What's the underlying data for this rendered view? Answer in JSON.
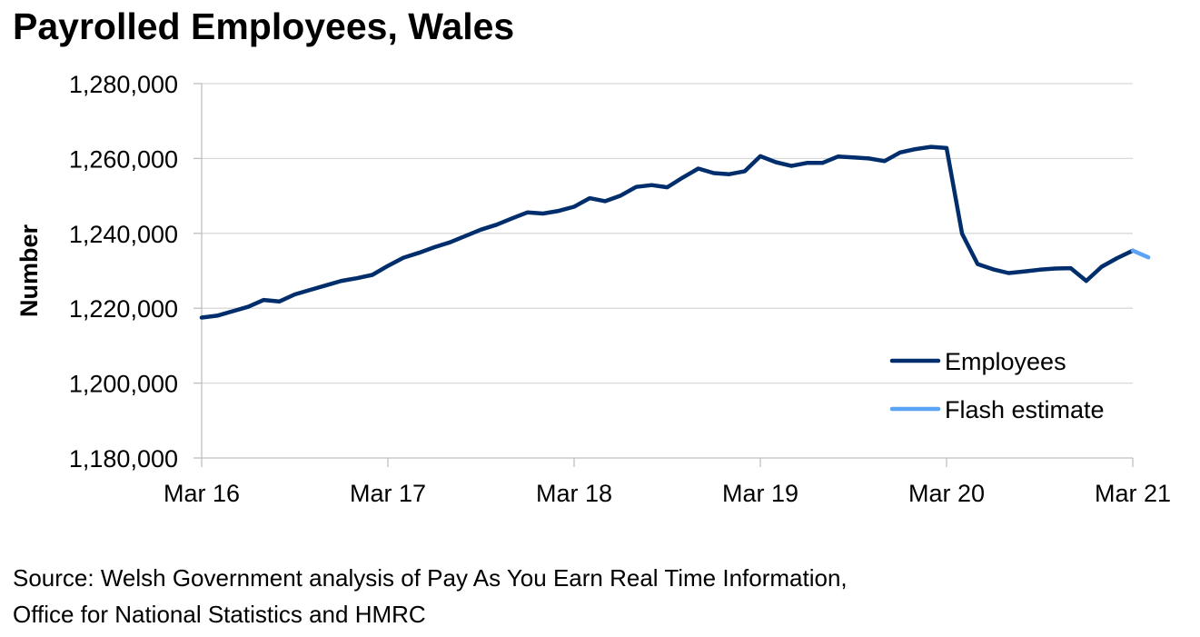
{
  "chart_data": {
    "type": "line",
    "title": "Payrolled Employees, Wales",
    "ylabel": "Number",
    "xlabel": "",
    "ylim": [
      1180000,
      1280000
    ],
    "y_ticks": [
      {
        "value": 1180000,
        "label": "1,180,000"
      },
      {
        "value": 1200000,
        "label": "1,200,000"
      },
      {
        "value": 1220000,
        "label": "1,220,000"
      },
      {
        "value": 1240000,
        "label": "1,240,000"
      },
      {
        "value": 1260000,
        "label": "1,260,000"
      },
      {
        "value": 1280000,
        "label": "1,280,000"
      }
    ],
    "x_ticks": [
      {
        "label": "Mar 16",
        "month": "2016-03"
      },
      {
        "label": "Mar 17",
        "month": "2017-03"
      },
      {
        "label": "Mar 18",
        "month": "2018-03"
      },
      {
        "label": "Mar 19",
        "month": "2019-03"
      },
      {
        "label": "Mar 20",
        "month": "2020-03"
      },
      {
        "label": "Mar 21",
        "month": "2021-03"
      }
    ],
    "grid": true,
    "legend_position": "bottom-right",
    "series": [
      {
        "name": "Employees",
        "color": "#002d6b",
        "points": [
          [
            "2016-03",
            1217500
          ],
          [
            "2016-04",
            1218000
          ],
          [
            "2016-05",
            1219200
          ],
          [
            "2016-06",
            1220400
          ],
          [
            "2016-07",
            1222200
          ],
          [
            "2016-08",
            1221800
          ],
          [
            "2016-09",
            1223700
          ],
          [
            "2016-10",
            1224900
          ],
          [
            "2016-11",
            1226100
          ],
          [
            "2016-12",
            1227300
          ],
          [
            "2017-01",
            1228000
          ],
          [
            "2017-02",
            1228900
          ],
          [
            "2017-03",
            1231300
          ],
          [
            "2017-04",
            1233500
          ],
          [
            "2017-05",
            1234800
          ],
          [
            "2017-06",
            1236300
          ],
          [
            "2017-07",
            1237600
          ],
          [
            "2017-08",
            1239300
          ],
          [
            "2017-09",
            1241000
          ],
          [
            "2017-10",
            1242300
          ],
          [
            "2017-11",
            1244000
          ],
          [
            "2017-12",
            1245600
          ],
          [
            "2018-01",
            1245300
          ],
          [
            "2018-02",
            1246000
          ],
          [
            "2018-03",
            1247100
          ],
          [
            "2018-04",
            1249400
          ],
          [
            "2018-05",
            1248600
          ],
          [
            "2018-06",
            1250100
          ],
          [
            "2018-07",
            1252400
          ],
          [
            "2018-08",
            1252900
          ],
          [
            "2018-09",
            1252300
          ],
          [
            "2018-10",
            1254900
          ],
          [
            "2018-11",
            1257300
          ],
          [
            "2018-12",
            1256100
          ],
          [
            "2019-01",
            1255800
          ],
          [
            "2019-02",
            1256600
          ],
          [
            "2019-03",
            1260600
          ],
          [
            "2019-04",
            1259000
          ],
          [
            "2019-05",
            1258000
          ],
          [
            "2019-06",
            1258800
          ],
          [
            "2019-07",
            1258800
          ],
          [
            "2019-08",
            1260500
          ],
          [
            "2019-09",
            1260300
          ],
          [
            "2019-10",
            1260000
          ],
          [
            "2019-11",
            1259300
          ],
          [
            "2019-12",
            1261600
          ],
          [
            "2020-01",
            1262500
          ],
          [
            "2020-02",
            1263100
          ],
          [
            "2020-03",
            1262800
          ],
          [
            "2020-04",
            1239900
          ],
          [
            "2020-05",
            1231800
          ],
          [
            "2020-06",
            1230400
          ],
          [
            "2020-07",
            1229400
          ],
          [
            "2020-08",
            1229800
          ],
          [
            "2020-09",
            1230300
          ],
          [
            "2020-10",
            1230600
          ],
          [
            "2020-11",
            1230700
          ],
          [
            "2020-12",
            1227300
          ],
          [
            "2021-01",
            1231100
          ],
          [
            "2021-02",
            1233400
          ],
          [
            "2021-03",
            1235400
          ]
        ]
      },
      {
        "name": "Flash estimate",
        "color": "#5ba3f5",
        "points": [
          [
            "2021-03",
            1235400
          ],
          [
            "2021-04",
            1233600
          ]
        ]
      }
    ]
  },
  "source": {
    "line1": "Source: Welsh Government analysis of Pay As You Earn Real Time Information,",
    "line2": "Office for National Statistics and HMRC"
  }
}
